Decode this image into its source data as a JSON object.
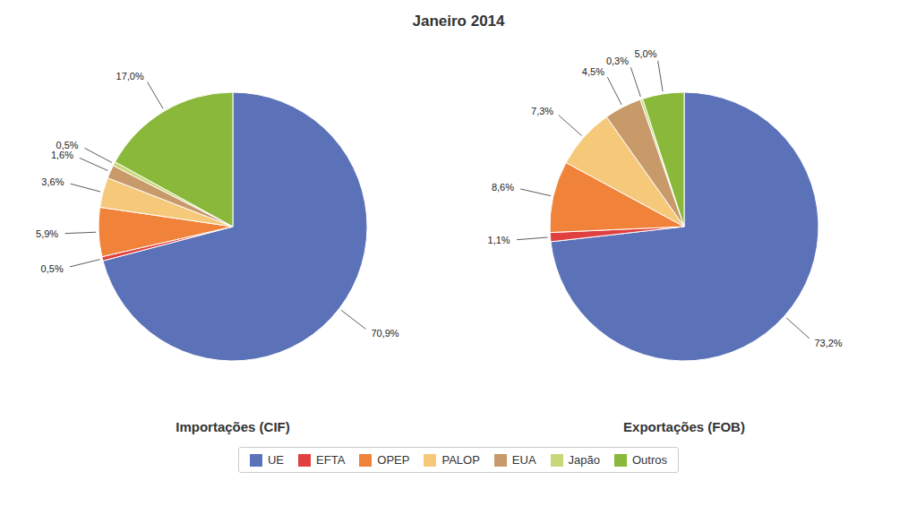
{
  "title": "Janeiro 2014",
  "chart_data": [
    {
      "type": "pie",
      "title": "Importações (CIF)",
      "categories": [
        "UE",
        "EFTA",
        "OPEP",
        "PALOP",
        "EUA",
        "Japão",
        "Outros"
      ],
      "values": [
        70.9,
        0.5,
        5.9,
        3.6,
        1.6,
        0.5,
        17.0
      ],
      "value_labels": [
        "70,9%",
        "0,5%",
        "5,9%",
        "3,6%",
        "1,6%",
        "0,5%",
        "17,0%"
      ],
      "colors": [
        "#5b72b8",
        "#e04040",
        "#f0823a",
        "#f5c87a",
        "#c89a6a",
        "#c8d878",
        "#8ab83a"
      ],
      "data_labels": true,
      "legend": "bottom"
    },
    {
      "type": "pie",
      "title": "Exportações (FOB)",
      "categories": [
        "UE",
        "EFTA",
        "OPEP",
        "PALOP",
        "EUA",
        "Japão",
        "Outros"
      ],
      "values": [
        73.2,
        1.1,
        8.6,
        7.3,
        4.5,
        0.3,
        5.0
      ],
      "value_labels": [
        "73,2%",
        "1,1%",
        "8,6%",
        "7,3%",
        "4,5%",
        "0,3%",
        "5,0%"
      ],
      "colors": [
        "#5b72b8",
        "#e04040",
        "#f0823a",
        "#f5c87a",
        "#c89a6a",
        "#c8d878",
        "#8ab83a"
      ],
      "data_labels": true,
      "legend": "bottom"
    }
  ]
}
